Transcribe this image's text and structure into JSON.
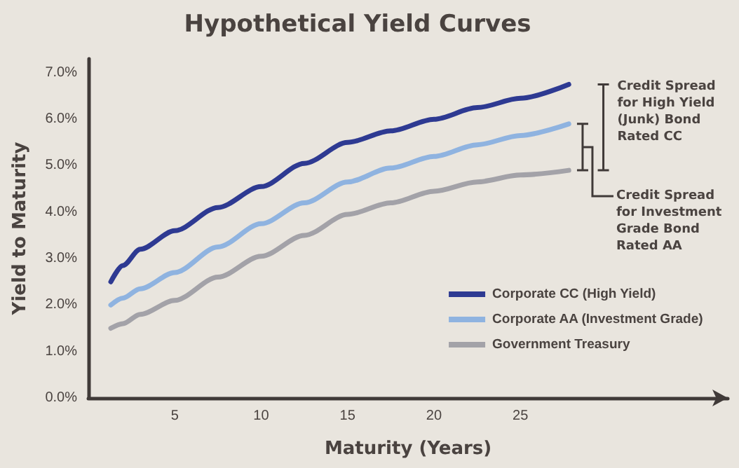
{
  "chart_data": {
    "type": "line",
    "title": "Hypothetical Yield Curves",
    "xlabel": "Maturity (Years)",
    "ylabel": "Yield to Maturity",
    "x": [
      1.3,
      2,
      3,
      5,
      7.5,
      10,
      12.5,
      15,
      17.5,
      20,
      22.5,
      25,
      27.8
    ],
    "series": [
      {
        "name": "Corporate CC (High Yield)",
        "color": "#2e3a92",
        "values": [
          2.5,
          2.85,
          3.2,
          3.6,
          4.1,
          4.55,
          5.05,
          5.5,
          5.75,
          6.0,
          6.25,
          6.45,
          6.75
        ]
      },
      {
        "name": "Corporate AA (Investment Grade)",
        "color": "#8fb3e0",
        "values": [
          2.0,
          2.15,
          2.35,
          2.7,
          3.25,
          3.75,
          4.2,
          4.65,
          4.95,
          5.2,
          5.45,
          5.65,
          5.9
        ]
      },
      {
        "name": "Government Treasury",
        "color": "#a3a2a8",
        "values": [
          1.5,
          1.6,
          1.8,
          2.1,
          2.6,
          3.05,
          3.5,
          3.95,
          4.2,
          4.45,
          4.65,
          4.8,
          4.9
        ]
      }
    ],
    "xlim": [
      0,
      37
    ],
    "xticks": [
      5,
      10,
      15,
      20,
      25
    ],
    "ylim": [
      0,
      7.3
    ],
    "yticks": [
      {
        "value": 0,
        "label": "0.0%"
      },
      {
        "value": 1,
        "label": "1.0%"
      },
      {
        "value": 2,
        "label": "2.0%"
      },
      {
        "value": 3,
        "label": "3.0%"
      },
      {
        "value": 4,
        "label": "4.0%"
      },
      {
        "value": 5,
        "label": "5.0%"
      },
      {
        "value": 6,
        "label": "6.0%"
      },
      {
        "value": 7,
        "label": "7.0%"
      }
    ],
    "annotations": [
      "Credit Spread for High Yield (Junk) Bond Rated CC",
      "Credit Spread for Investment Grade Bond Rated AA"
    ],
    "grid": false,
    "legend": "bottom right",
    "marker": "none",
    "line_style": "solid"
  }
}
